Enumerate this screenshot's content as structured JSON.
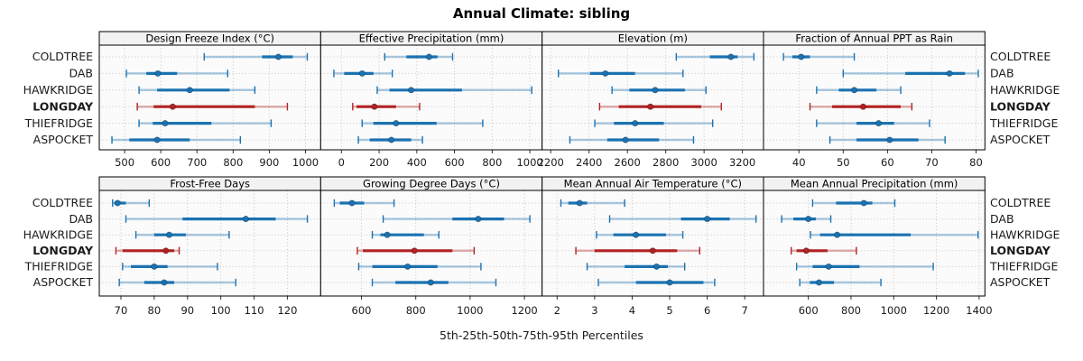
{
  "title": "Annual Climate: sibling",
  "xlabel": "5th-25th-50th-75th-95th Percentiles",
  "percentile_labels": [
    "5th",
    "25th",
    "50th",
    "75th",
    "95th"
  ],
  "sites": [
    {
      "name": "COLDTREE",
      "bold": false,
      "color": "#1b72b2"
    },
    {
      "name": "DAB",
      "bold": false,
      "color": "#1b72b2"
    },
    {
      "name": "HAWKRIDGE",
      "bold": false,
      "color": "#1b72b2"
    },
    {
      "name": "LONGDAY",
      "bold": true,
      "color": "#b22222"
    },
    {
      "name": "THIEFRIDGE",
      "bold": false,
      "color": "#1b72b2"
    },
    {
      "name": "ASPOCKET",
      "bold": false,
      "color": "#1b72b2"
    }
  ],
  "colors": {
    "blue": "#1b72b2",
    "red": "#b22222",
    "grid": "#c4c4c4",
    "border": "#000000",
    "header_bg": "#f2f2f2",
    "plot_bg": "#fbfbfb",
    "tick_text": "#1a1a1a",
    "label_text": "#1a1a1a"
  },
  "chart_data": [
    {
      "type": "scatter",
      "variant": "percentile-interval",
      "title": "Design Freeze Index (°C)",
      "xlim": [
        430,
        1042
      ],
      "ticks": [
        500,
        600,
        700,
        800,
        900,
        1000
      ],
      "series": [
        {
          "name": "COLDTREE",
          "percentiles": [
            720,
            880,
            925,
            965,
            1005
          ]
        },
        {
          "name": "DAB",
          "percentiles": [
            505,
            560,
            592,
            645,
            785
          ]
        },
        {
          "name": "HAWKRIDGE",
          "percentiles": [
            540,
            590,
            680,
            790,
            860
          ]
        },
        {
          "name": "LONGDAY",
          "percentiles": [
            535,
            580,
            633,
            860,
            950
          ]
        },
        {
          "name": "THIEFRIDGE",
          "percentiles": [
            540,
            578,
            612,
            740,
            905
          ]
        },
        {
          "name": "ASPOCKET",
          "percentiles": [
            465,
            513,
            590,
            680,
            820
          ]
        }
      ]
    },
    {
      "type": "scatter",
      "variant": "percentile-interval",
      "title": "Effective Precipitation (mm)",
      "xlim": [
        -110,
        1065
      ],
      "ticks": [
        0,
        200,
        400,
        600,
        800,
        1000
      ],
      "series": [
        {
          "name": "COLDTREE",
          "percentiles": [
            230,
            345,
            465,
            510,
            590
          ]
        },
        {
          "name": "DAB",
          "percentiles": [
            -40,
            15,
            110,
            170,
            270
          ]
        },
        {
          "name": "HAWKRIDGE",
          "percentiles": [
            190,
            255,
            370,
            640,
            1010
          ]
        },
        {
          "name": "LONGDAY",
          "percentiles": [
            60,
            80,
            175,
            290,
            415
          ]
        },
        {
          "name": "THIEFRIDGE",
          "percentiles": [
            110,
            170,
            290,
            505,
            750
          ]
        },
        {
          "name": "ASPOCKET",
          "percentiles": [
            90,
            150,
            265,
            370,
            430
          ]
        }
      ]
    },
    {
      "type": "scatter",
      "variant": "percentile-interval",
      "title": "Elevation (m)",
      "xlim": [
        2155,
        3310
      ],
      "ticks": [
        2200,
        2400,
        2600,
        2800,
        3000,
        3200
      ],
      "series": [
        {
          "name": "COLDTREE",
          "percentiles": [
            2855,
            3030,
            3140,
            3175,
            3260
          ]
        },
        {
          "name": "DAB",
          "percentiles": [
            2240,
            2405,
            2485,
            2640,
            2890
          ]
        },
        {
          "name": "HAWKRIDGE",
          "percentiles": [
            2520,
            2610,
            2745,
            2900,
            3010
          ]
        },
        {
          "name": "LONGDAY",
          "percentiles": [
            2455,
            2555,
            2720,
            2985,
            3090
          ]
        },
        {
          "name": "THIEFRIDGE",
          "percentiles": [
            2430,
            2530,
            2640,
            2790,
            3045
          ]
        },
        {
          "name": "ASPOCKET",
          "percentiles": [
            2300,
            2495,
            2590,
            2765,
            2945
          ]
        }
      ]
    },
    {
      "type": "scatter",
      "variant": "percentile-interval",
      "title": "Fraction of Annual PPT as Rain",
      "xlim": [
        32,
        82
      ],
      "ticks": [
        40,
        50,
        60,
        70,
        80
      ],
      "series": [
        {
          "name": "COLDTREE",
          "percentiles": [
            36.5,
            38.5,
            40.5,
            42.5,
            52.5
          ]
        },
        {
          "name": "DAB",
          "percentiles": [
            50,
            64,
            74,
            77.5,
            80.5
          ]
        },
        {
          "name": "HAWKRIDGE",
          "percentiles": [
            44,
            49,
            52.5,
            57.5,
            63
          ]
        },
        {
          "name": "LONGDAY",
          "percentiles": [
            42.5,
            47.5,
            54.5,
            63,
            65.5
          ]
        },
        {
          "name": "THIEFRIDGE",
          "percentiles": [
            44,
            53,
            58,
            61.5,
            69.5
          ]
        },
        {
          "name": "ASPOCKET",
          "percentiles": [
            47,
            53,
            60.5,
            67,
            73
          ]
        }
      ]
    },
    {
      "type": "scatter",
      "variant": "percentile-interval",
      "title": "Frost-Free Days",
      "xlim": [
        63.5,
        130
      ],
      "ticks": [
        70,
        80,
        90,
        100,
        110,
        120
      ],
      "series": [
        {
          "name": "COLDTREE",
          "percentiles": [
            67.5,
            68,
            69,
            71.5,
            78.5
          ]
        },
        {
          "name": "DAB",
          "percentiles": [
            71.5,
            88.5,
            107.5,
            116.5,
            126
          ]
        },
        {
          "name": "HAWKRIDGE",
          "percentiles": [
            74.5,
            80,
            84.5,
            89.5,
            102.5
          ]
        },
        {
          "name": "LONGDAY",
          "percentiles": [
            68.5,
            70.5,
            83.5,
            86,
            87.5
          ]
        },
        {
          "name": "THIEFRIDGE",
          "percentiles": [
            70.5,
            73,
            80,
            84,
            99
          ]
        },
        {
          "name": "ASPOCKET",
          "percentiles": [
            69.5,
            77,
            83,
            86,
            104.5
          ]
        }
      ]
    },
    {
      "type": "scatter",
      "variant": "percentile-interval",
      "title": "Growing Degree Days (°C)",
      "xlim": [
        450,
        1265
      ],
      "ticks": [
        600,
        800,
        1000,
        1200
      ],
      "series": [
        {
          "name": "COLDTREE",
          "percentiles": [
            500,
            520,
            565,
            610,
            720
          ]
        },
        {
          "name": "DAB",
          "percentiles": [
            680,
            935,
            1030,
            1125,
            1220
          ]
        },
        {
          "name": "HAWKRIDGE",
          "percentiles": [
            640,
            670,
            695,
            830,
            885
          ]
        },
        {
          "name": "LONGDAY",
          "percentiles": [
            585,
            605,
            795,
            935,
            1015
          ]
        },
        {
          "name": "THIEFRIDGE",
          "percentiles": [
            590,
            640,
            770,
            880,
            1040
          ]
        },
        {
          "name": "ASPOCKET",
          "percentiles": [
            640,
            725,
            855,
            920,
            1095
          ]
        }
      ]
    },
    {
      "type": "scatter",
      "variant": "percentile-interval",
      "title": "Mean Annual Air Temperature (°C)",
      "xlim": [
        1.6,
        7.5
      ],
      "ticks": [
        2,
        3,
        4,
        5,
        6,
        7
      ],
      "series": [
        {
          "name": "COLDTREE",
          "percentiles": [
            2.1,
            2.3,
            2.6,
            2.8,
            3.8
          ]
        },
        {
          "name": "DAB",
          "percentiles": [
            3.4,
            5.3,
            6.0,
            6.6,
            7.3
          ]
        },
        {
          "name": "HAWKRIDGE",
          "percentiles": [
            3.05,
            3.5,
            4.1,
            4.9,
            5.35
          ]
        },
        {
          "name": "LONGDAY",
          "percentiles": [
            2.5,
            3.0,
            4.55,
            5.2,
            5.8
          ]
        },
        {
          "name": "THIEFRIDGE",
          "percentiles": [
            2.8,
            3.8,
            4.65,
            4.95,
            5.4
          ]
        },
        {
          "name": "ASPOCKET",
          "percentiles": [
            3.1,
            4.1,
            5.0,
            5.9,
            6.2
          ]
        }
      ]
    },
    {
      "type": "scatter",
      "variant": "percentile-interval",
      "title": "Mean Annual Precipitation (mm)",
      "xlim": [
        390,
        1427
      ],
      "ticks": [
        600,
        800,
        1000,
        1200,
        1400
      ],
      "series": [
        {
          "name": "COLDTREE",
          "percentiles": [
            620,
            730,
            860,
            900,
            1005
          ]
        },
        {
          "name": "DAB",
          "percentiles": [
            475,
            530,
            600,
            635,
            705
          ]
        },
        {
          "name": "HAWKRIDGE",
          "percentiles": [
            610,
            655,
            735,
            1080,
            1395
          ]
        },
        {
          "name": "LONGDAY",
          "percentiles": [
            520,
            545,
            590,
            690,
            825
          ]
        },
        {
          "name": "THIEFRIDGE",
          "percentiles": [
            545,
            620,
            695,
            840,
            1185
          ]
        },
        {
          "name": "ASPOCKET",
          "percentiles": [
            560,
            607,
            650,
            720,
            940
          ]
        }
      ]
    }
  ]
}
